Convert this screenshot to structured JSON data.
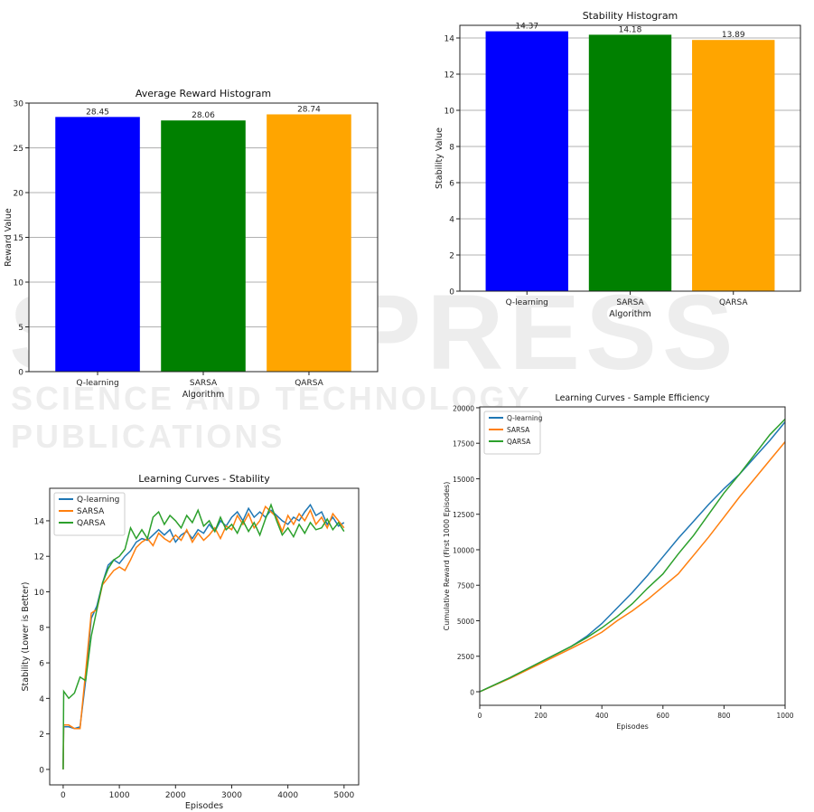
{
  "watermark": {
    "line1": "SCITEPRESS",
    "line2": "SCIENCE AND TECHNOLOGY PUBLICATIONS"
  },
  "chart_data": [
    {
      "id": "avg-reward",
      "type": "bar",
      "title": "Average Reward Histogram",
      "xlabel": "Algorithm",
      "ylabel": "Reward Value",
      "categories": [
        "Q-learning",
        "SARSA",
        "QARSA"
      ],
      "values": [
        28.45,
        28.06,
        28.74
      ],
      "labels": [
        "28.45",
        "28.06",
        "28.74"
      ],
      "colors": [
        "#0000ff",
        "#008000",
        "#ffa500"
      ],
      "ylim": [
        0,
        30
      ],
      "yticks": [
        0,
        5,
        10,
        15,
        20,
        25,
        30
      ],
      "grid": "y"
    },
    {
      "id": "stability-hist",
      "type": "bar",
      "title": "Stability Histogram",
      "xlabel": "Algorithm",
      "ylabel": "Stability Value",
      "categories": [
        "Q-learning",
        "SARSA",
        "QARSA"
      ],
      "values": [
        14.37,
        14.18,
        13.89
      ],
      "labels": [
        "14.37",
        "14.18",
        "13.89"
      ],
      "colors": [
        "#0000ff",
        "#008000",
        "#ffa500"
      ],
      "ylim": [
        0,
        14.7
      ],
      "yticks": [
        0,
        2,
        4,
        6,
        8,
        10,
        12,
        14
      ],
      "grid": "y"
    },
    {
      "id": "stability-curves",
      "type": "line",
      "title": "Learning Curves - Stability",
      "xlabel": "Episodes",
      "ylabel": "Stability (Lower is Better)",
      "xlim": [
        -240,
        5260
      ],
      "ylim": [
        -0.87,
        15.83
      ],
      "xticks": [
        0,
        1000,
        2000,
        3000,
        4000,
        5000
      ],
      "yticks": [
        0,
        2,
        4,
        6,
        8,
        10,
        12,
        14
      ],
      "legend": "top-left",
      "x": [
        0,
        10,
        100,
        200,
        300,
        400,
        500,
        600,
        700,
        800,
        900,
        1000,
        1100,
        1200,
        1300,
        1400,
        1500,
        1600,
        1700,
        1800,
        1900,
        2000,
        2100,
        2200,
        2300,
        2400,
        2500,
        2600,
        2700,
        2800,
        2900,
        3000,
        3100,
        3200,
        3300,
        3400,
        3500,
        3600,
        3700,
        3800,
        3900,
        4000,
        4100,
        4200,
        4300,
        4400,
        4500,
        4600,
        4700,
        4800,
        4900,
        5000
      ],
      "series": [
        {
          "name": "Q-learning",
          "color": "#1f77b4",
          "values": [
            0,
            2.4,
            2.4,
            2.3,
            2.4,
            5.0,
            8.5,
            9.2,
            10.5,
            11.5,
            11.8,
            11.6,
            12.0,
            12.3,
            12.8,
            13.0,
            12.9,
            13.2,
            13.5,
            13.2,
            13.5,
            12.8,
            13.2,
            13.4,
            13.0,
            13.5,
            13.3,
            13.8,
            13.4,
            14.0,
            13.7,
            14.2,
            14.5,
            14.0,
            14.7,
            14.2,
            14.5,
            14.2,
            14.6,
            14.3,
            14.0,
            13.8,
            14.2,
            14.0,
            14.5,
            14.9,
            14.3,
            14.5,
            13.8,
            14.2,
            13.7,
            13.9
          ]
        },
        {
          "name": "SARSA",
          "color": "#ff7f0e",
          "values": [
            0,
            2.5,
            2.5,
            2.3,
            2.3,
            5.5,
            8.8,
            9.0,
            10.4,
            10.8,
            11.2,
            11.4,
            11.2,
            11.8,
            12.5,
            12.8,
            13.0,
            12.6,
            13.3,
            13.0,
            12.8,
            13.2,
            12.9,
            13.5,
            12.8,
            13.3,
            12.9,
            13.2,
            13.6,
            13.0,
            13.7,
            13.5,
            14.3,
            13.8,
            14.4,
            13.6,
            14.0,
            14.8,
            14.5,
            14.2,
            13.4,
            14.3,
            13.8,
            14.4,
            14.0,
            14.6,
            13.8,
            14.2,
            13.6,
            14.4,
            14.0,
            13.6
          ]
        },
        {
          "name": "QARSA",
          "color": "#2ca02c",
          "values": [
            0,
            4.4,
            4.0,
            4.3,
            5.2,
            5.0,
            7.5,
            9.0,
            10.5,
            11.3,
            11.8,
            12.0,
            12.4,
            13.6,
            13.0,
            13.5,
            13.0,
            14.2,
            14.5,
            13.8,
            14.3,
            14.0,
            13.6,
            14.3,
            13.9,
            14.6,
            13.7,
            14.0,
            13.4,
            14.2,
            13.5,
            13.8,
            13.3,
            14.0,
            13.4,
            13.9,
            13.2,
            14.1,
            14.9,
            14.0,
            13.2,
            13.6,
            13.1,
            13.8,
            13.3,
            13.9,
            13.5,
            13.6,
            14.1,
            13.5,
            13.9,
            13.4
          ]
        }
      ]
    },
    {
      "id": "sample-efficiency",
      "type": "line",
      "title": "Learning Curves - Sample Efficiency",
      "xlabel": "Episodes",
      "ylabel": "Cumulative Reward (First 1000 Episodes)",
      "xlim": [
        0,
        1000
      ],
      "ylim": [
        -955,
        20060
      ],
      "xticks": [
        0,
        200,
        400,
        600,
        800,
        1000
      ],
      "yticks": [
        0,
        2500,
        5000,
        7500,
        10000,
        12500,
        15000,
        17500,
        20000
      ],
      "legend": "top-left",
      "x": [
        0,
        100,
        200,
        300,
        350,
        400,
        450,
        500,
        550,
        600,
        650,
        700,
        750,
        800,
        850,
        900,
        950,
        1000
      ],
      "series": [
        {
          "name": "Q-learning",
          "color": "#1f77b4",
          "values": [
            0,
            1000,
            2100,
            3200,
            3900,
            4800,
            5900,
            7000,
            8200,
            9500,
            10800,
            12000,
            13200,
            14300,
            15300,
            16500,
            17700,
            19000
          ]
        },
        {
          "name": "SARSA",
          "color": "#ff7f0e",
          "values": [
            0,
            950,
            2000,
            3050,
            3600,
            4200,
            5000,
            5700,
            6500,
            7400,
            8300,
            9600,
            10900,
            12300,
            13700,
            15000,
            16300,
            17600
          ]
        },
        {
          "name": "QARSA",
          "color": "#2ca02c",
          "values": [
            0,
            1000,
            2100,
            3200,
            3800,
            4500,
            5300,
            6200,
            7300,
            8300,
            9700,
            11000,
            12500,
            14000,
            15300,
            16700,
            18100,
            19200
          ]
        }
      ]
    }
  ]
}
